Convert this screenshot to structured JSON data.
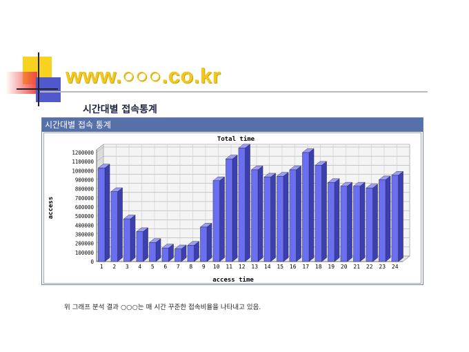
{
  "slide": {
    "title": "www.○○○.co.kr",
    "subtitle": "시간대별 접속통계",
    "panel_header": "시간대별 접속 통계",
    "caption": "위 그래프 분석 결과 ○○○는 매 시간 꾸준한 접속비율을 나타내고 있음."
  },
  "colors": {
    "title": "#f2c81e",
    "panel_header": "#5670aa",
    "bar_front": "#6a6ef0",
    "bar_top": "#9a9cf8",
    "bar_side": "#3c3fb0"
  },
  "chart_data": {
    "type": "bar",
    "title": "Total time",
    "xlabel": "access time",
    "ylabel": "access",
    "categories": [
      "1",
      "2",
      "3",
      "4",
      "5",
      "6",
      "7",
      "8",
      "9",
      "10",
      "11",
      "12",
      "13",
      "14",
      "15",
      "16",
      "17",
      "18",
      "19",
      "20",
      "21",
      "22",
      "23",
      "24"
    ],
    "values": [
      1030000,
      770000,
      470000,
      330000,
      210000,
      150000,
      140000,
      180000,
      380000,
      890000,
      1130000,
      1250000,
      1010000,
      930000,
      940000,
      1010000,
      1200000,
      1060000,
      870000,
      830000,
      830000,
      810000,
      900000,
      950000
    ],
    "ylim": [
      0,
      1200000
    ],
    "yticks": [
      "0",
      "100000",
      "200000",
      "300000",
      "400000",
      "500000",
      "600000",
      "700000",
      "800000",
      "900000",
      "1000000",
      "1100000",
      "1200000"
    ],
    "grid": true,
    "style": "3d"
  }
}
